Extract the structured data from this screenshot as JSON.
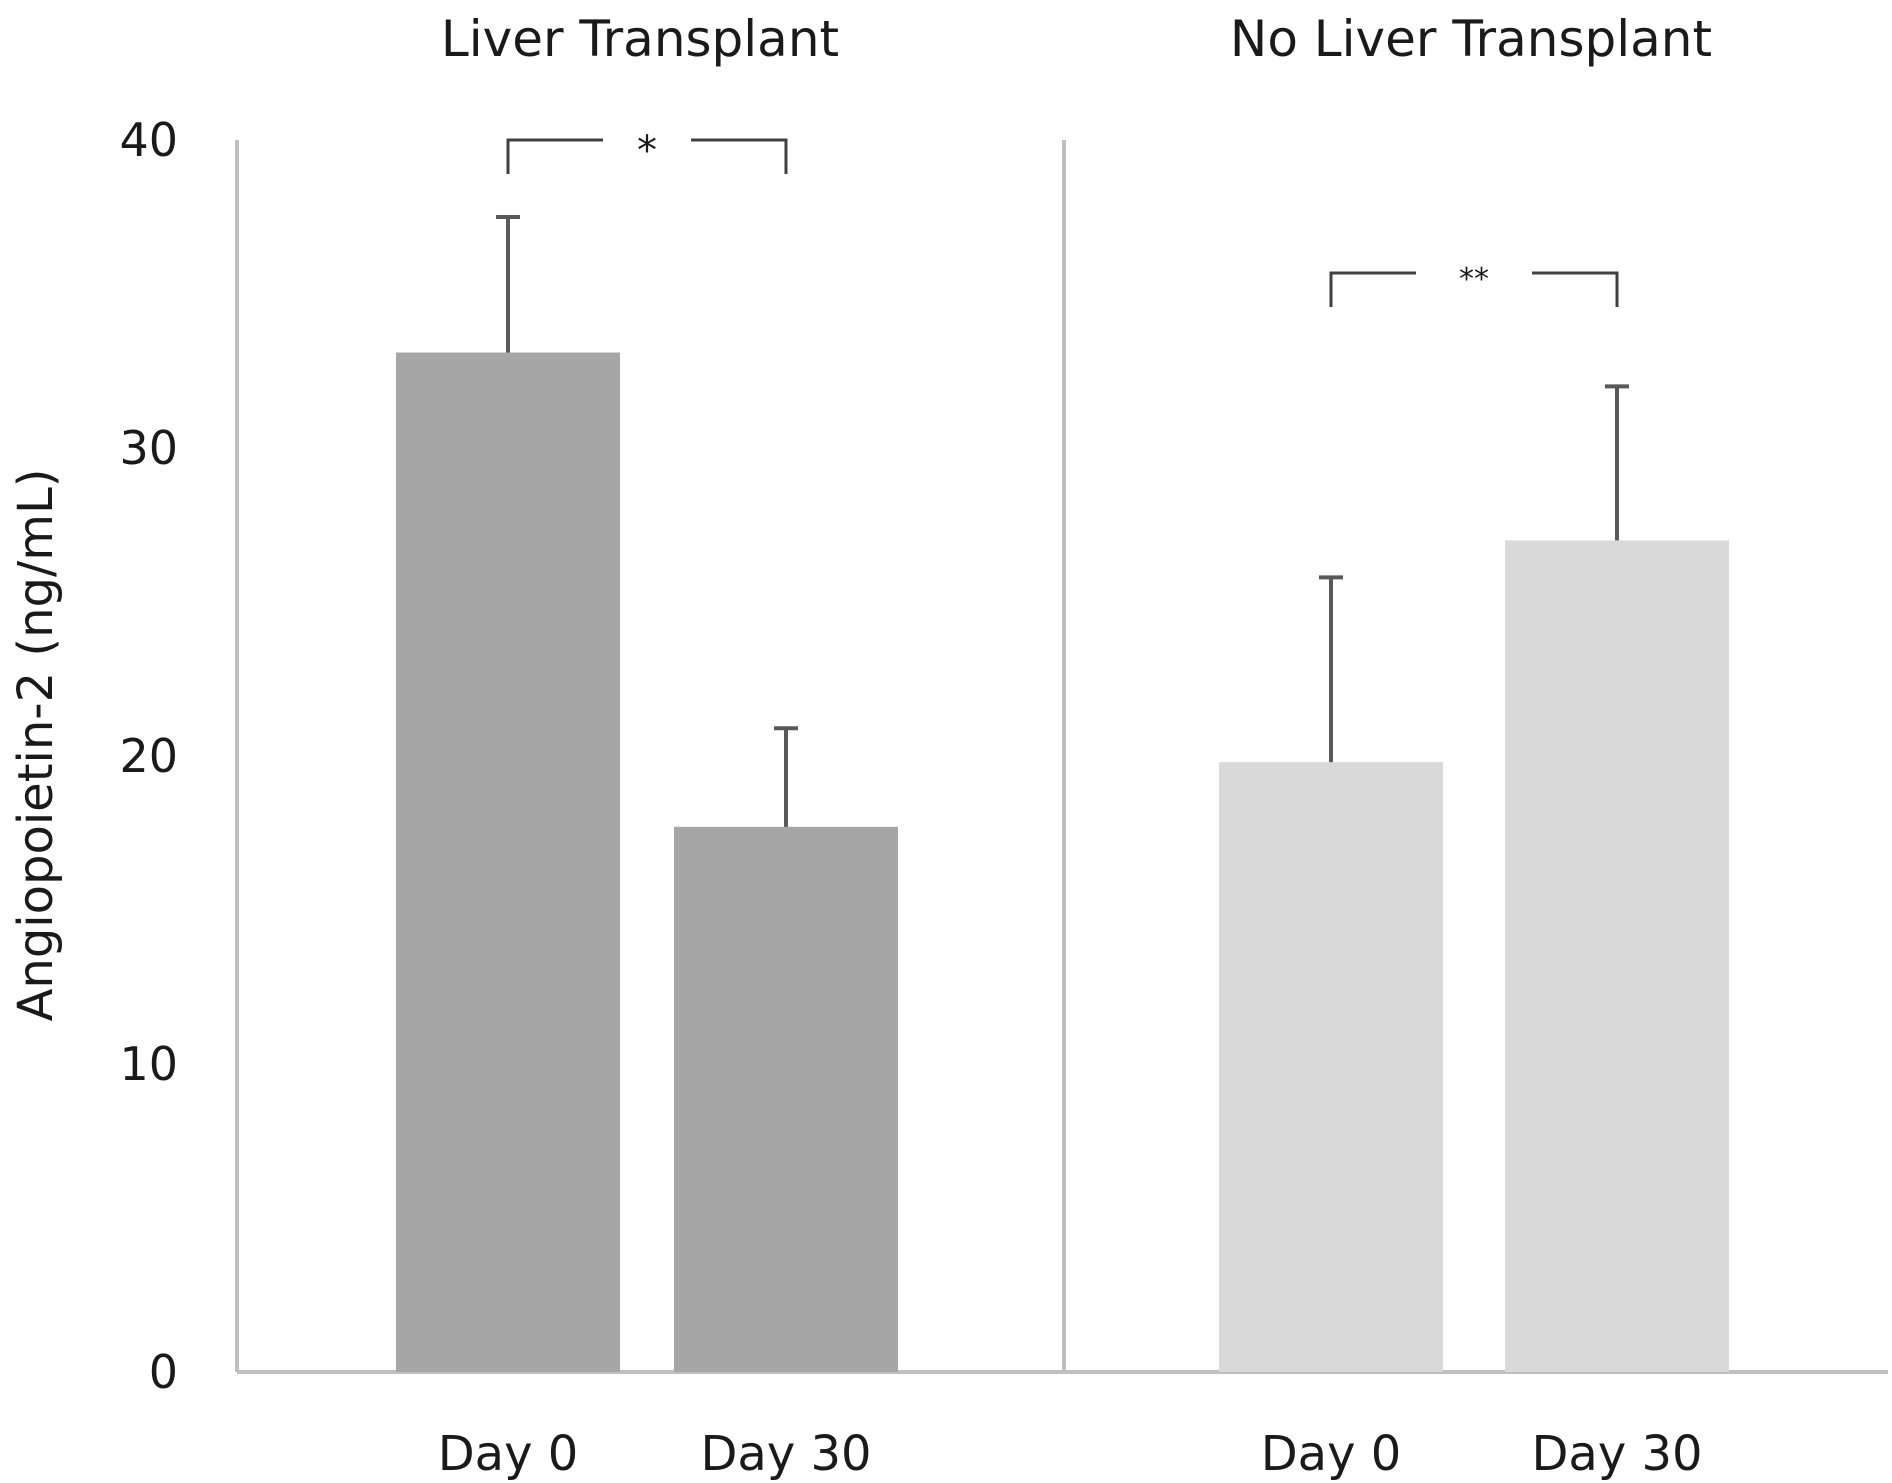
{
  "chart_data": {
    "type": "bar",
    "ylabel": "Angiopoietin-2 (ng/mL)",
    "ylim": [
      0,
      40
    ],
    "yticks": [
      0,
      10,
      20,
      30,
      40
    ],
    "grid": false,
    "groups": [
      {
        "title": "Liver Transplant",
        "color": "#a6a6a6",
        "categories": [
          "Day 0",
          "Day 30"
        ],
        "values": [
          33.1,
          17.7
        ],
        "error_upper": [
          37.5,
          20.9
        ],
        "significance": "*"
      },
      {
        "title": "No Liver Transplant",
        "color": "#d9d9d9",
        "categories": [
          "Day 0",
          "Day 30"
        ],
        "values": [
          19.8,
          27.0
        ],
        "error_upper": [
          25.8,
          32.0
        ],
        "significance": "**"
      }
    ],
    "colors": {
      "axis": "#bfbfbf",
      "error_bar": "#595959",
      "bracket": "#404040"
    }
  }
}
